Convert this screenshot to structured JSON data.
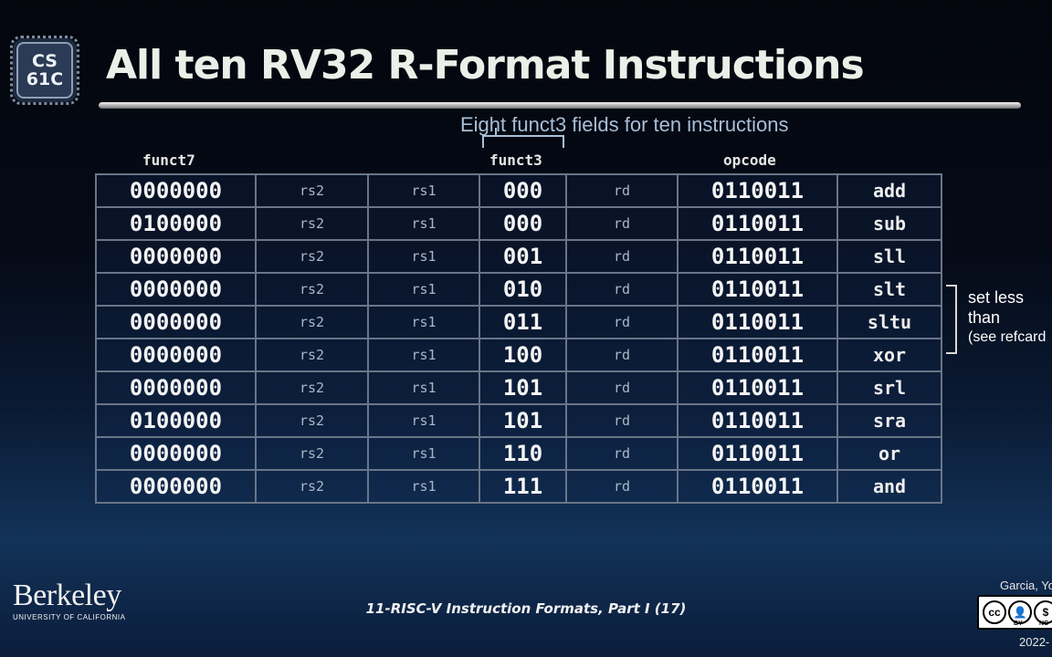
{
  "logo": {
    "line1": "CS",
    "line2": "61C"
  },
  "title": "All ten RV32 R-Format Instructions",
  "funct3_note": "Eight funct3 fields for ten instructions",
  "headers": {
    "funct7": "funct7",
    "funct3": "funct3",
    "opcode": "opcode"
  },
  "rows": [
    {
      "funct7": "0000000",
      "rs2": "rs2",
      "rs1": "rs1",
      "funct3": "000",
      "rd": "rd",
      "opcode": "0110011",
      "name": "add"
    },
    {
      "funct7": "0100000",
      "rs2": "rs2",
      "rs1": "rs1",
      "funct3": "000",
      "rd": "rd",
      "opcode": "0110011",
      "name": "sub"
    },
    {
      "funct7": "0000000",
      "rs2": "rs2",
      "rs1": "rs1",
      "funct3": "001",
      "rd": "rd",
      "opcode": "0110011",
      "name": "sll"
    },
    {
      "funct7": "0000000",
      "rs2": "rs2",
      "rs1": "rs1",
      "funct3": "010",
      "rd": "rd",
      "opcode": "0110011",
      "name": "slt"
    },
    {
      "funct7": "0000000",
      "rs2": "rs2",
      "rs1": "rs1",
      "funct3": "011",
      "rd": "rd",
      "opcode": "0110011",
      "name": "sltu"
    },
    {
      "funct7": "0000000",
      "rs2": "rs2",
      "rs1": "rs1",
      "funct3": "100",
      "rd": "rd",
      "opcode": "0110011",
      "name": "xor"
    },
    {
      "funct7": "0000000",
      "rs2": "rs2",
      "rs1": "rs1",
      "funct3": "101",
      "rd": "rd",
      "opcode": "0110011",
      "name": "srl"
    },
    {
      "funct7": "0100000",
      "rs2": "rs2",
      "rs1": "rs1",
      "funct3": "101",
      "rd": "rd",
      "opcode": "0110011",
      "name": "sra"
    },
    {
      "funct7": "0000000",
      "rs2": "rs2",
      "rs1": "rs1",
      "funct3": "110",
      "rd": "rd",
      "opcode": "0110011",
      "name": "or"
    },
    {
      "funct7": "0000000",
      "rs2": "rs2",
      "rs1": "rs1",
      "funct3": "111",
      "rd": "rd",
      "opcode": "0110011",
      "name": "and"
    }
  ],
  "side_note": {
    "line1": "set less",
    "line2": "than",
    "line3": "(see refcard"
  },
  "footer": {
    "institution": "Berkeley",
    "institution_sub": "UNIVERSITY OF CALIFORNIA",
    "lecture": "11-RISC-V Instruction Formats, Part I (17)",
    "authors": "Garcia, Yo",
    "year": "2022-",
    "license_labels": [
      "BY",
      "NC"
    ]
  }
}
